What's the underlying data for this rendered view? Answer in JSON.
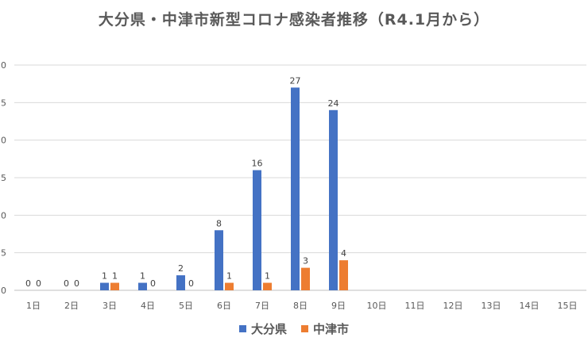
{
  "chart_data": {
    "type": "bar",
    "title": "大分県・中津市新型コロナ感染者推移（R4.1月から）",
    "categories": [
      "1日",
      "2日",
      "3日",
      "4日",
      "5日",
      "6日",
      "7日",
      "8日",
      "9日",
      "10日",
      "11日",
      "12日",
      "13日",
      "14日",
      "15日"
    ],
    "series": [
      {
        "name": "大分県",
        "color": "#4472C4",
        "values": [
          0,
          0,
          1,
          1,
          2,
          8,
          16,
          27,
          24,
          null,
          null,
          null,
          null,
          null,
          null
        ]
      },
      {
        "name": "中津市",
        "color": "#ED7D31",
        "values": [
          0,
          0,
          1,
          0,
          0,
          1,
          1,
          3,
          4,
          null,
          null,
          null,
          null,
          null,
          null
        ]
      }
    ],
    "y_ticks": [
      "0",
      "5",
      "0",
      "5",
      "0",
      "5",
      "0"
    ],
    "ylim": [
      0,
      30
    ],
    "grid": true,
    "legend_position": "bottom"
  }
}
